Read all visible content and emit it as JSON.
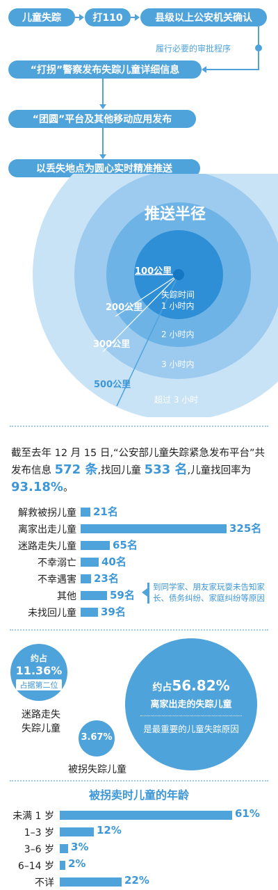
{
  "flow": {
    "step1": "儿童失踪",
    "step2": "打110",
    "step3": "县级以上公安机关确认",
    "approval_note": "履行必要的审批程序",
    "step4": "“打拐”警察发布失踪儿童详细信息",
    "step5": "“团圆”平台及其他移动应用发布",
    "step6": "以丢失地点为圆心实时精准推送"
  },
  "radius_diagram": {
    "title": "推送半径",
    "rings": [
      {
        "radius": "100公里",
        "time_label": "失踪时间",
        "time": "1 小时内"
      },
      {
        "radius": "200公里",
        "time": "2 小时内"
      },
      {
        "radius": "300公里",
        "time": "3 小时内"
      },
      {
        "radius": "500公里",
        "time": "超过 3 小时"
      }
    ],
    "colors": [
      "#2f8fd6",
      "#6db3e6",
      "#9ccbef",
      "#c9e3f6"
    ]
  },
  "intro": {
    "part1": "截至去年 12 月 15 日,“公安部儿童失踪紧急发布平台”共发布信息 ",
    "info_count": "572 条",
    "part2": ",找回儿童 ",
    "found_count": "533 名",
    "part3": ",儿童找回率为 ",
    "rate": "93.18%",
    "part4": "。"
  },
  "chart_data": [
    {
      "type": "bar",
      "orientation": "horizontal",
      "categories": [
        "解救被拐儿童",
        "离家出走儿童",
        "迷路走失儿童",
        "不幸溺亡",
        "不幸遇害",
        "其他",
        "未找回儿童"
      ],
      "values": [
        21,
        325,
        65,
        40,
        23,
        59,
        39
      ],
      "value_labels": [
        "21名",
        "325名",
        "65名",
        "40名",
        "23名",
        "59名",
        "39名"
      ],
      "annotation": "到同学家、朋友家玩耍未告知家长、债务纠纷、家庭纠纷等原因",
      "annotation_target": "其他"
    },
    {
      "type": "bar",
      "orientation": "horizontal",
      "title": "被拐卖时儿童的年龄",
      "categories": [
        "未满 1 岁",
        "1–3 岁",
        "3–6 岁",
        "6–14 岁",
        "不详"
      ],
      "values": [
        61,
        12,
        3,
        2,
        22
      ],
      "value_labels": [
        "61%",
        "12%",
        "3%",
        "2%",
        "22%"
      ]
    }
  ],
  "bubbles": {
    "left": {
      "prefix": "约占",
      "value": "11.36%",
      "sub": "占据第二位",
      "caption_line1": "迷路走失",
      "caption_line2": "失踪儿童"
    },
    "small": {
      "value": "3.67%",
      "caption": "被拐失踪儿童"
    },
    "right": {
      "prefix": "约占",
      "value": "56.82%",
      "line2": "离家出走的失踪儿童",
      "line3": "是最重要的儿童失踪原因"
    }
  }
}
